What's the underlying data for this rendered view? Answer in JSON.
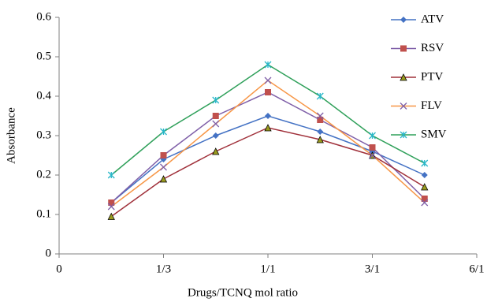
{
  "chart_data": {
    "type": "line",
    "xlabel": "Drugs/TCNQ mol ratio",
    "ylabel": "Absorbance",
    "x": [
      1,
      2,
      3,
      4,
      5,
      6,
      7
    ],
    "xlim": [
      0,
      8
    ],
    "xticks": [
      0,
      {
        "value": 2,
        "label": "1/3"
      },
      {
        "value": 4,
        "label": "1/1"
      },
      {
        "value": 6,
        "label": "3/1"
      },
      {
        "value": 8,
        "label": "6/1"
      }
    ],
    "ylim": [
      0,
      0.6
    ],
    "yticks": [
      0,
      0.1,
      0.2,
      0.3,
      0.4,
      0.5,
      0.6
    ],
    "grid": false,
    "legend": "upper right",
    "series": [
      {
        "name": "ATV",
        "color": "#4472c4",
        "marker": "diamond",
        "marker_color": "#4472c4",
        "values": [
          0.13,
          0.24,
          0.3,
          0.35,
          0.31,
          0.26,
          0.2
        ]
      },
      {
        "name": "RSV",
        "color": "#7f5fa8",
        "marker": "square",
        "marker_color": "#c0504d",
        "values": [
          0.13,
          0.25,
          0.35,
          0.41,
          0.34,
          0.27,
          0.14
        ]
      },
      {
        "name": "PTV",
        "color": "#a0303a",
        "marker": "triangle",
        "marker_color": "#9b9b1f",
        "values": [
          0.095,
          0.19,
          0.26,
          0.32,
          0.29,
          0.25,
          0.17
        ]
      },
      {
        "name": "FLV",
        "color": "#f79646",
        "marker": "x",
        "marker_color": "#7f5fa8",
        "values": [
          0.12,
          0.22,
          0.33,
          0.44,
          0.35,
          0.25,
          0.13
        ]
      },
      {
        "name": "SMV",
        "color": "#2fa05a",
        "marker": "asterisk",
        "marker_color": "#27b6c8",
        "values": [
          0.2,
          0.31,
          0.39,
          0.48,
          0.4,
          0.3,
          0.23
        ]
      }
    ]
  }
}
